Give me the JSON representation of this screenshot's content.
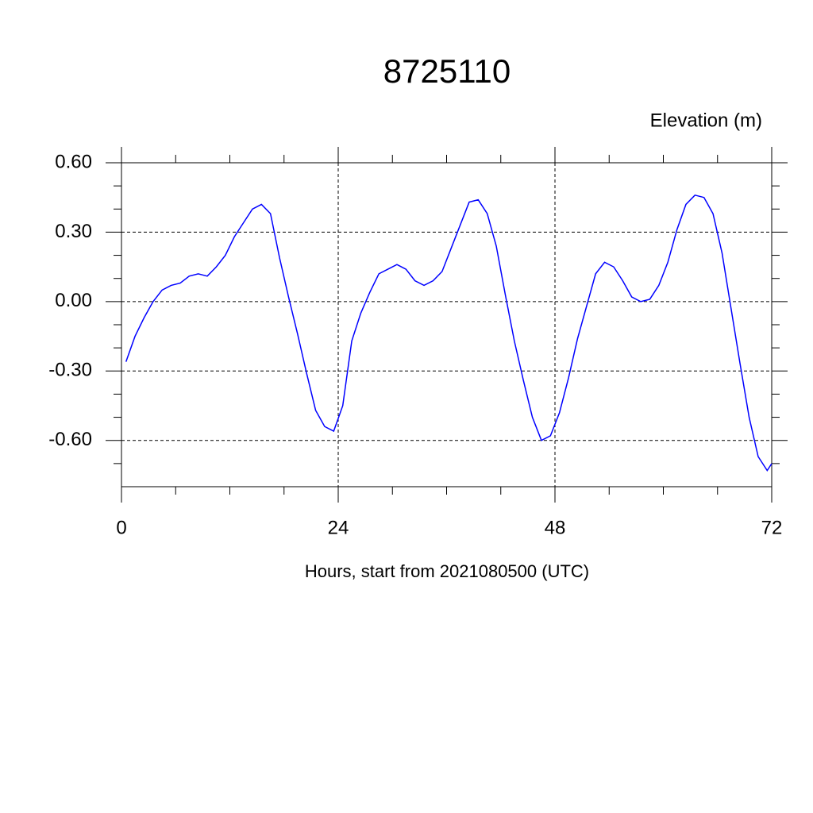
{
  "chart_data": {
    "type": "line",
    "title": "8725110",
    "y_axis_label": "Elevation (m)",
    "x_axis_label": "Hours, start from 2021080500 (UTC)",
    "x": [
      0.5,
      1.5,
      2.5,
      3.5,
      4.5,
      5.5,
      6.5,
      7.5,
      8.5,
      9.5,
      10.5,
      11.5,
      12.5,
      13.5,
      14.5,
      15.5,
      16.5,
      17.5,
      18.5,
      19.5,
      20.5,
      21.5,
      22.5,
      23.5,
      24.5,
      25.5,
      26.5,
      27.5,
      28.5,
      29.5,
      30.5,
      31.5,
      32.5,
      33.5,
      34.5,
      35.5,
      36.5,
      37.5,
      38.5,
      39.5,
      40.5,
      41.5,
      42.5,
      43.5,
      44.5,
      45.5,
      46.5,
      47.5,
      48.5,
      49.5,
      50.5,
      51.5,
      52.5,
      53.5,
      54.5,
      55.5,
      56.5,
      57.5,
      58.5,
      59.5,
      60.5,
      61.5,
      62.5,
      63.5,
      64.5,
      65.5,
      66.5,
      67.5,
      68.5,
      69.5,
      70.5,
      71.5,
      72
    ],
    "series": [
      {
        "name": "Elevation",
        "color": "#0000ff",
        "values": [
          -0.26,
          -0.15,
          -0.07,
          0.0,
          0.05,
          0.07,
          0.08,
          0.11,
          0.12,
          0.11,
          0.15,
          0.2,
          0.28,
          0.34,
          0.4,
          0.42,
          0.38,
          0.19,
          0.02,
          -0.14,
          -0.31,
          -0.47,
          -0.54,
          -0.56,
          -0.45,
          -0.17,
          -0.05,
          0.04,
          0.12,
          0.14,
          0.16,
          0.14,
          0.09,
          0.07,
          0.09,
          0.13,
          0.23,
          0.33,
          0.43,
          0.44,
          0.38,
          0.24,
          0.03,
          -0.17,
          -0.34,
          -0.5,
          -0.6,
          -0.58,
          -0.48,
          -0.33,
          -0.16,
          -0.02,
          0.12,
          0.17,
          0.15,
          0.09,
          0.02,
          0.0,
          0.01,
          0.07,
          0.17,
          0.31,
          0.42,
          0.46,
          0.45,
          0.38,
          0.21,
          -0.03,
          -0.27,
          -0.5,
          -0.67,
          -0.73,
          -0.7
        ]
      }
    ],
    "xlim": [
      0,
      72
    ],
    "ylim": [
      -0.8,
      0.6
    ],
    "xticks": [
      0,
      24,
      48,
      72
    ],
    "xminorticks": [
      6,
      12,
      18,
      30,
      36,
      42,
      54,
      60,
      66
    ],
    "yticks": [
      {
        "value": 0.6,
        "label": "0.60"
      },
      {
        "value": 0.3,
        "label": "0.30"
      },
      {
        "value": 0,
        "label": "0.00"
      },
      {
        "value": -0.3,
        "label": "-0.30"
      },
      {
        "value": -0.6,
        "label": "-0.60"
      }
    ],
    "yminorticks": [
      0.5,
      0.4,
      0.2,
      0.1,
      -0.1,
      -0.2,
      -0.4,
      -0.5,
      -0.7
    ],
    "grid": true
  }
}
